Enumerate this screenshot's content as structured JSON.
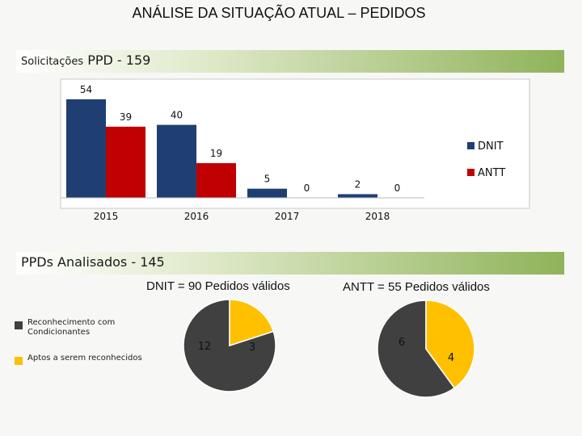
{
  "page": {
    "title": "ANÁLISE DA SITUAÇÃO ATUAL – PEDIDOS"
  },
  "section1": {
    "label_small": "Solicitações",
    "label_big": "PPD - 159"
  },
  "section2": {
    "label": "PPDs Analisados - 145"
  },
  "colors": {
    "dnit": "#1f3f73",
    "antt": "#c00000",
    "reconhecimento": "#404040",
    "aptos": "#ffc000"
  },
  "chart_data": [
    {
      "type": "bar",
      "categories": [
        "2015",
        "2016",
        "2017",
        "2018"
      ],
      "series": [
        {
          "name": "DNIT",
          "values": [
            54,
            40,
            5,
            2
          ]
        },
        {
          "name": "ANTT",
          "values": [
            39,
            19,
            0,
            0
          ]
        }
      ],
      "ylim": [
        0,
        54
      ],
      "legend": "right",
      "grid": false
    },
    {
      "type": "pie",
      "title": "DNIT = 90 Pedidos válidos",
      "labels": [
        "Reconhecimento com Condicionantes",
        "Aptos a serem reconhecidos"
      ],
      "values": [
        12,
        3
      ],
      "legend": "left"
    },
    {
      "type": "pie",
      "title": "ANTT = 55 Pedidos válidos",
      "labels": [
        "Reconhecimento com Condicionantes",
        "Aptos a serem reconhecidos"
      ],
      "values": [
        6,
        4
      ]
    }
  ]
}
